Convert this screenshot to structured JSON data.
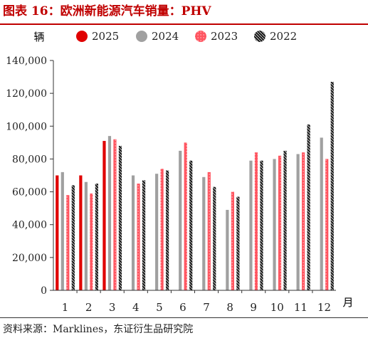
{
  "title": "图表 16：欧洲新能源汽车销量：PHV",
  "source": "资料来源：Marklines，东证衍生品研究院",
  "chart_data": {
    "type": "bar",
    "ylabel": "辆",
    "xlabel": "月",
    "ylim": [
      0,
      140000
    ],
    "yticks": [
      "0",
      "20,000",
      "40,000",
      "60,000",
      "80,000",
      "100,000",
      "120,000",
      "140,000"
    ],
    "categories": [
      "1",
      "2",
      "3",
      "4",
      "5",
      "6",
      "7",
      "8",
      "9",
      "10",
      "11",
      "12"
    ],
    "legend_position": "top",
    "series": [
      {
        "name": "2025",
        "color": "#e00000",
        "pattern": "solid",
        "values": [
          70000,
          70000,
          91000,
          null,
          null,
          null,
          null,
          null,
          null,
          null,
          null,
          null
        ]
      },
      {
        "name": "2024",
        "color": "#a0a0a0",
        "pattern": "solid",
        "values": [
          72000,
          66000,
          94000,
          70000,
          71000,
          85000,
          69000,
          49000,
          79000,
          80000,
          83000,
          93000
        ]
      },
      {
        "name": "2023",
        "color": "#ff5560",
        "pattern": "dashed",
        "values": [
          58000,
          59000,
          92000,
          65000,
          74000,
          90000,
          72000,
          60000,
          84000,
          82000,
          84000,
          80000
        ]
      },
      {
        "name": "2022",
        "color": "#1a1a1a",
        "pattern": "braided",
        "values": [
          64000,
          65000,
          88000,
          67000,
          73000,
          79000,
          63000,
          57000,
          79000,
          85000,
          101000,
          127000
        ]
      }
    ]
  }
}
